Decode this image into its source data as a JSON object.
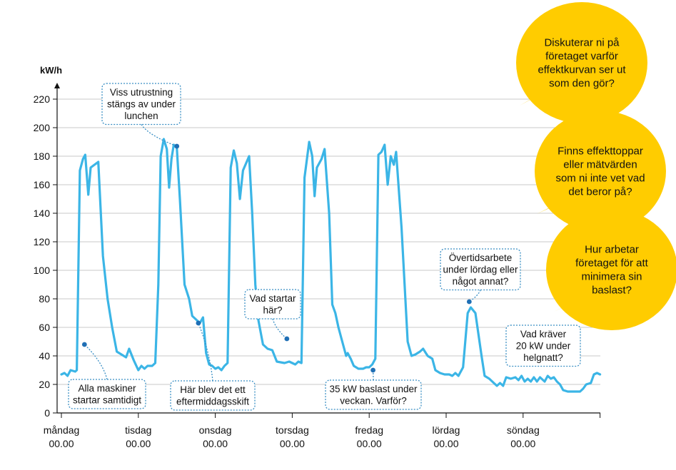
{
  "chart_data": {
    "type": "line",
    "ylabel": "kW/h",
    "ylim": [
      0,
      220
    ],
    "yticks": [
      0,
      20,
      40,
      60,
      80,
      100,
      120,
      140,
      160,
      180,
      200,
      220
    ],
    "grid": true,
    "colors": {
      "line": "#3bb5e6",
      "bubble": "#ffcc00",
      "grid": "#c8c8c8",
      "note_border": "#3a8fc4",
      "marker": "#1f6fb5"
    },
    "xticks": [
      {
        "day": 0,
        "label1": "måndag",
        "label2": "00.00"
      },
      {
        "day": 1,
        "label1": "tisdag",
        "label2": "00.00"
      },
      {
        "day": 2,
        "label1": "onsdag",
        "label2": "00.00"
      },
      {
        "day": 3,
        "label1": "torsdag",
        "label2": "00.00"
      },
      {
        "day": 4,
        "label1": "fredag",
        "label2": "00.00"
      },
      {
        "day": 5,
        "label1": "lördag",
        "label2": "00.00"
      },
      {
        "day": 6,
        "label1": "söndag",
        "label2": "00.00"
      }
    ],
    "series": [
      {
        "points": [
          [
            0,
            27
          ],
          [
            0.04,
            28
          ],
          [
            0.08,
            26
          ],
          [
            0.12,
            30
          ],
          [
            0.18,
            29
          ],
          [
            0.2,
            30
          ],
          [
            0.24,
            170
          ],
          [
            0.28,
            178
          ],
          [
            0.31,
            181
          ],
          [
            0.35,
            153
          ],
          [
            0.38,
            172
          ],
          [
            0.48,
            176
          ],
          [
            0.54,
            110
          ],
          [
            0.6,
            80
          ],
          [
            0.66,
            60
          ],
          [
            0.72,
            43
          ],
          [
            0.78,
            41
          ],
          [
            0.84,
            39
          ],
          [
            0.88,
            45
          ],
          [
            0.94,
            37
          ],
          [
            1.0,
            30
          ],
          [
            1.04,
            33
          ],
          [
            1.08,
            31
          ],
          [
            1.12,
            33
          ],
          [
            1.18,
            33
          ],
          [
            1.22,
            35
          ],
          [
            1.26,
            90
          ],
          [
            1.29,
            180
          ],
          [
            1.33,
            192
          ],
          [
            1.37,
            185
          ],
          [
            1.4,
            158
          ],
          [
            1.43,
            178
          ],
          [
            1.46,
            188
          ],
          [
            1.5,
            186
          ],
          [
            1.54,
            150
          ],
          [
            1.6,
            90
          ],
          [
            1.66,
            80
          ],
          [
            1.7,
            68
          ],
          [
            1.74,
            66
          ],
          [
            1.8,
            63
          ],
          [
            1.84,
            67
          ],
          [
            1.88,
            42
          ],
          [
            1.92,
            34
          ],
          [
            1.96,
            33
          ],
          [
            2.0,
            31
          ],
          [
            2.04,
            32
          ],
          [
            2.08,
            30
          ],
          [
            2.12,
            33
          ],
          [
            2.16,
            35
          ],
          [
            2.2,
            172
          ],
          [
            2.24,
            184
          ],
          [
            2.28,
            175
          ],
          [
            2.32,
            150
          ],
          [
            2.36,
            170
          ],
          [
            2.44,
            180
          ],
          [
            2.48,
            140
          ],
          [
            2.52,
            90
          ],
          [
            2.56,
            65
          ],
          [
            2.62,
            48
          ],
          [
            2.68,
            45
          ],
          [
            2.74,
            44
          ],
          [
            2.8,
            36
          ],
          [
            2.9,
            35
          ],
          [
            2.96,
            36
          ],
          [
            3.0,
            35
          ],
          [
            3.04,
            34
          ],
          [
            3.08,
            36
          ],
          [
            3.12,
            35
          ],
          [
            3.16,
            165
          ],
          [
            3.22,
            190
          ],
          [
            3.26,
            180
          ],
          [
            3.29,
            152
          ],
          [
            3.32,
            172
          ],
          [
            3.38,
            178
          ],
          [
            3.42,
            185
          ],
          [
            3.48,
            140
          ],
          [
            3.52,
            76
          ],
          [
            3.56,
            70
          ],
          [
            3.6,
            60
          ],
          [
            3.64,
            52
          ],
          [
            3.7,
            40
          ],
          [
            3.72,
            42
          ],
          [
            3.76,
            38
          ],
          [
            3.8,
            33
          ],
          [
            3.86,
            31
          ],
          [
            3.92,
            31
          ],
          [
            3.96,
            32
          ],
          [
            4.0,
            32
          ],
          [
            4.04,
            34
          ],
          [
            4.08,
            38
          ],
          [
            4.12,
            181
          ],
          [
            4.16,
            183
          ],
          [
            4.2,
            188
          ],
          [
            4.24,
            160
          ],
          [
            4.28,
            180
          ],
          [
            4.32,
            174
          ],
          [
            4.35,
            183
          ],
          [
            4.42,
            130
          ],
          [
            4.46,
            90
          ],
          [
            4.5,
            50
          ],
          [
            4.55,
            40
          ],
          [
            4.6,
            41
          ],
          [
            4.66,
            43
          ],
          [
            4.7,
            45
          ],
          [
            4.76,
            40
          ],
          [
            4.82,
            38
          ],
          [
            4.86,
            30
          ],
          [
            4.92,
            28
          ],
          [
            4.98,
            27
          ],
          [
            5.04,
            27
          ],
          [
            5.08,
            26
          ],
          [
            5.12,
            28
          ],
          [
            5.16,
            26
          ],
          [
            5.22,
            32
          ],
          [
            5.28,
            70
          ],
          [
            5.32,
            74
          ],
          [
            5.38,
            70
          ],
          [
            5.42,
            55
          ],
          [
            5.46,
            40
          ],
          [
            5.5,
            26
          ],
          [
            5.56,
            24
          ],
          [
            5.62,
            21
          ],
          [
            5.66,
            19
          ],
          [
            5.7,
            21
          ],
          [
            5.74,
            19
          ],
          [
            5.78,
            25
          ],
          [
            5.84,
            24
          ],
          [
            5.9,
            25
          ],
          [
            5.94,
            23
          ],
          [
            5.98,
            26
          ],
          [
            6.02,
            22
          ],
          [
            6.06,
            24
          ],
          [
            6.1,
            22
          ],
          [
            6.14,
            25
          ],
          [
            6.18,
            22
          ],
          [
            6.22,
            25
          ],
          [
            6.28,
            22
          ],
          [
            6.32,
            26
          ],
          [
            6.36,
            24
          ],
          [
            6.4,
            25
          ],
          [
            6.44,
            22
          ],
          [
            6.48,
            20
          ],
          [
            6.52,
            16
          ],
          [
            6.58,
            15
          ],
          [
            6.64,
            15
          ],
          [
            6.7,
            15
          ],
          [
            6.74,
            15
          ],
          [
            6.78,
            17
          ],
          [
            6.82,
            20
          ],
          [
            6.88,
            21
          ],
          [
            6.92,
            27
          ],
          [
            6.96,
            28
          ],
          [
            7.0,
            27
          ]
        ]
      }
    ],
    "annotations": [
      {
        "lines": [
          "Viss utrustning",
          "stängs av under",
          "lunchen"
        ],
        "point": [
          1.5,
          187
        ]
      },
      {
        "lines": [
          "Alla maskiner",
          "startar samtidigt"
        ],
        "point": [
          0.3,
          48
        ]
      },
      {
        "lines": [
          "Här blev det ett",
          "eftermiddagsskift"
        ],
        "point": [
          1.78,
          63
        ]
      },
      {
        "lines": [
          "Vad startar",
          "här?"
        ],
        "point": [
          2.93,
          52
        ]
      },
      {
        "lines": [
          "35 kW baslast under",
          "veckan. Varför?"
        ],
        "point": [
          4.05,
          30
        ]
      },
      {
        "lines": [
          "Övertidsarbete",
          "under lördag eller",
          "något annat?"
        ],
        "point": [
          5.3,
          78
        ]
      },
      {
        "lines": [
          "Vad kräver",
          "20 kW under",
          "helgnatt?"
        ],
        "point": null
      }
    ],
    "bubbles": [
      {
        "lines": [
          "Diskuterar ni på",
          "företaget varför",
          "effektkurvan ser ut",
          "som den gör?"
        ]
      },
      {
        "lines": [
          "Finns effekttoppar",
          "eller mätvärden",
          "som ni inte vet vad",
          "det beror på?"
        ]
      },
      {
        "lines": [
          "Hur arbetar",
          "företaget för att",
          "minimera sin",
          "baslast?"
        ]
      }
    ]
  }
}
